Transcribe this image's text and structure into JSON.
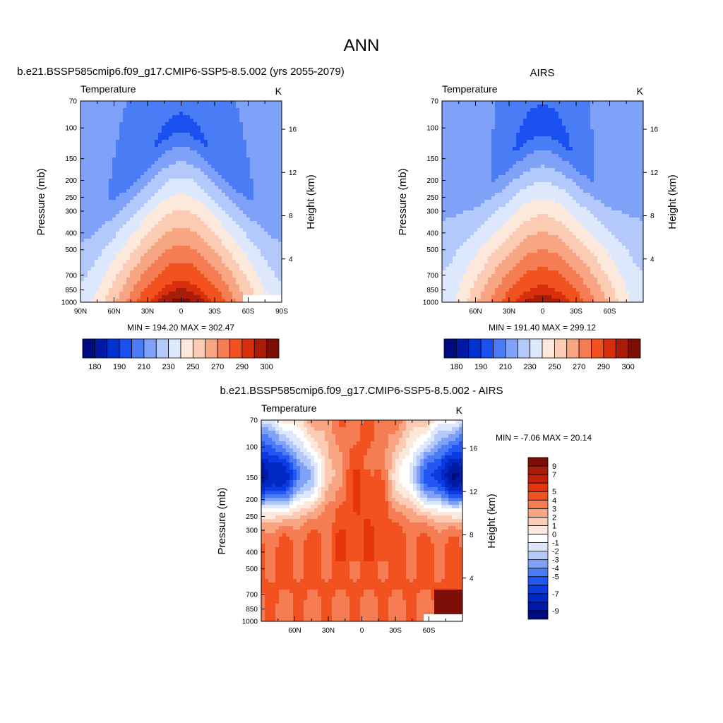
{
  "page_title": "ANN",
  "chart_data": [
    {
      "id": "model",
      "type": "heatmap",
      "title": "b.e21.BSSP585cmip6.f09_g17.CMIP6-SSP5-8.5.002 (yrs 2055-2079)",
      "left_label": "Temperature",
      "units": "K",
      "ylabel": "Pressure (mb)",
      "ylabel_right": "Height (km)",
      "x_ticks": [
        "90N",
        "60N",
        "30N",
        "0",
        "30S",
        "60S",
        "90S"
      ],
      "x_tick_values": [
        90,
        60,
        30,
        0,
        -30,
        -60,
        -90
      ],
      "xlim": [
        90,
        -90
      ],
      "p_ticks": [
        70,
        100,
        150,
        200,
        250,
        300,
        400,
        500,
        700,
        850,
        1000
      ],
      "plim": [
        70,
        1000
      ],
      "h_ticks": [
        4,
        8,
        12,
        16
      ],
      "min_max": "MIN = 194.20  MAX = 302.47",
      "levels": [
        180,
        185,
        190,
        200,
        210,
        220,
        230,
        240,
        250,
        260,
        270,
        280,
        290,
        295,
        300
      ],
      "colorbar_labels": [
        "180",
        "190",
        "210",
        "230",
        "250",
        "270",
        "290",
        "300"
      ],
      "colorbar_label_levels": [
        180,
        190,
        210,
        230,
        250,
        270,
        290,
        300
      ],
      "field": {
        "t_surf": 302,
        "t_trop_eq": 196,
        "t_trop_pole": 211,
        "t_strat": 212,
        "blank_lat_from": -55
      }
    },
    {
      "id": "obs",
      "type": "heatmap",
      "title": "AIRS",
      "left_label": "Temperature",
      "units": "K",
      "ylabel": "Pressure (mb)",
      "ylabel_right": "Height (km)",
      "x_ticks": [
        "60N",
        "30N",
        "0",
        "30S",
        "60S"
      ],
      "x_tick_values": [
        60,
        30,
        0,
        -30,
        -60
      ],
      "xlim": [
        90,
        -90
      ],
      "p_ticks": [
        70,
        100,
        150,
        200,
        250,
        300,
        400,
        500,
        700,
        850,
        1000
      ],
      "plim": [
        70,
        1000
      ],
      "h_ticks": [
        4,
        8,
        12,
        16
      ],
      "min_max": "MIN = 191.40  MAX = 299.12",
      "levels": [
        180,
        185,
        190,
        200,
        210,
        220,
        230,
        240,
        250,
        260,
        270,
        280,
        290,
        295,
        300
      ],
      "colorbar_labels": [
        "180",
        "190",
        "210",
        "230",
        "250",
        "270",
        "290",
        "300"
      ],
      "colorbar_label_levels": [
        180,
        190,
        210,
        230,
        250,
        270,
        290,
        300
      ],
      "field": {
        "t_surf": 299,
        "t_trop_eq": 193,
        "t_trop_pole": 218,
        "t_strat": 212,
        "blank_lat_from": -999
      }
    },
    {
      "id": "diff",
      "type": "heatmap",
      "title": "b.e21.BSSP585cmip6.f09_g17.CMIP6-SSP5-8.5.002 - AIRS",
      "left_label": "Temperature",
      "units": "K",
      "ylabel": "Pressure (mb)",
      "ylabel_right": "Height (km)",
      "x_ticks": [
        "60N",
        "30N",
        "0",
        "30S",
        "60S"
      ],
      "x_tick_values": [
        60,
        30,
        0,
        -30,
        -60
      ],
      "xlim": [
        90,
        -90
      ],
      "p_ticks": [
        70,
        100,
        150,
        200,
        250,
        300,
        400,
        500,
        700,
        850,
        1000
      ],
      "plim": [
        70,
        1000
      ],
      "h_ticks": [
        4,
        8,
        12,
        16
      ],
      "min_max": "MIN =  -7.06  MAX =  20.14",
      "levels": [
        -9,
        -8,
        -7,
        -6,
        -5,
        -4,
        -3,
        -2,
        -1,
        0,
        1,
        2,
        3,
        4,
        5,
        6,
        7,
        9
      ],
      "colorbar_labels": [
        "9",
        "7",
        "5",
        "4",
        "3",
        "2",
        "1",
        "0",
        "-1",
        "-2",
        "-3",
        "-4",
        "-5",
        "-7",
        "-9"
      ],
      "colorbar_label_levels": [
        9,
        7,
        5,
        4,
        3,
        2,
        1,
        0,
        -1,
        -2,
        -3,
        -4,
        -5,
        -7,
        -9
      ],
      "field": {
        "blank_lat_from": -55
      }
    }
  ],
  "colors": {
    "seq15": [
      "#000a7f",
      "#001aa6",
      "#0033d1",
      "#1a4ff0",
      "#4a7cf6",
      "#7fa2f8",
      "#b3c8fb",
      "#dde8fd",
      "#fde9db",
      "#fbcbb3",
      "#f7a582",
      "#f57c53",
      "#f2521f",
      "#d92f0c",
      "#a81c0a",
      "#7d0d07"
    ],
    "div18": [
      "#000a7f",
      "#001aa6",
      "#0028c4",
      "#0a3ae0",
      "#2457f2",
      "#4a7cf6",
      "#7fa2f8",
      "#b3c8fb",
      "#dde8fd",
      "#ffffff",
      "#fde9db",
      "#fbcbb3",
      "#f7a582",
      "#f57c53",
      "#f2521f",
      "#e6340b",
      "#c41f0b",
      "#a81c0a",
      "#7d0d07"
    ]
  }
}
